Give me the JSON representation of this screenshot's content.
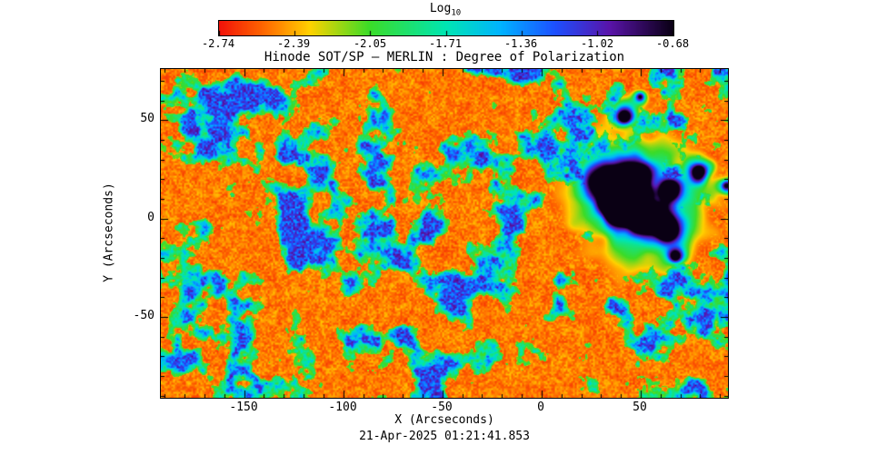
{
  "chart_data": {
    "type": "heatmap",
    "title": "Hinode SOT/SP — MERLIN : Degree of Polarization",
    "xlabel": "X (Arcseconds)",
    "ylabel": "Y (Arcseconds)",
    "timestamp": "21-Apr-2025 01:21:41.853",
    "x_ticks": [
      "-150",
      "-100",
      "-50",
      "0",
      "50"
    ],
    "y_ticks": [
      "50",
      "0",
      "-50"
    ],
    "x_range": [
      -192,
      94
    ],
    "y_range": [
      -91,
      76
    ],
    "colorbar": {
      "label_main": "Log",
      "label_sub": "10",
      "ticks": [
        "-2.74",
        "-2.39",
        "-2.05",
        "-1.71",
        "-1.36",
        "-1.02",
        "-0.68"
      ],
      "min": -2.74,
      "max": -0.68
    },
    "colormap": [
      {
        "pos": 0.0,
        "color": "#f2130a"
      },
      {
        "pos": 0.1,
        "color": "#ff6a00"
      },
      {
        "pos": 0.2,
        "color": "#ffd200"
      },
      {
        "pos": 0.33,
        "color": "#3cdc28"
      },
      {
        "pos": 0.5,
        "color": "#00e6b4"
      },
      {
        "pos": 0.62,
        "color": "#00b4ff"
      },
      {
        "pos": 0.74,
        "color": "#1e50ff"
      },
      {
        "pos": 0.86,
        "color": "#5a14aa"
      },
      {
        "pos": 1.0,
        "color": "#0a0014"
      }
    ],
    "features": {
      "background": "quiet-sun low polarization (red/orange speckle)",
      "network": "magnetic network lanes of intermediate polarization (green/cyan/blue)",
      "sunspot_group": {
        "x_arcsec": [
          15,
          80
        ],
        "y_arcsec": [
          -30,
          30
        ],
        "description": "sunspot group with high degree of polarization (dark purple/black umbrae surrounded by cyan/green penumbra)"
      }
    }
  }
}
